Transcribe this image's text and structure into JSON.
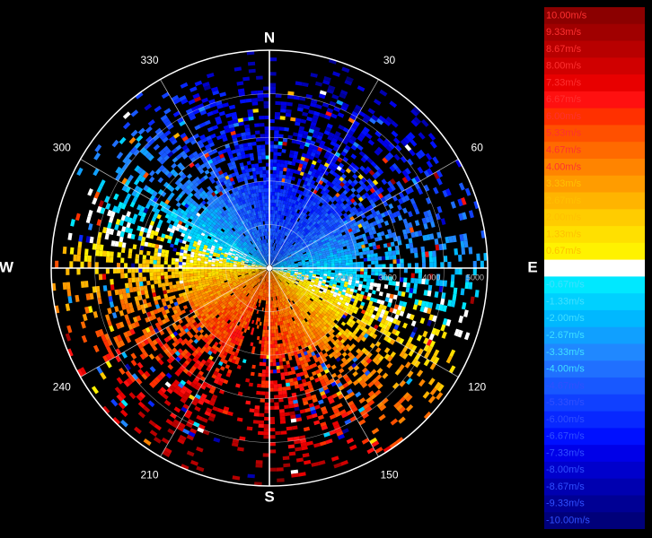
{
  "chart_data": {
    "type": "heatmap",
    "subtype": "polar-radial-velocity",
    "units": "m/s",
    "compass": {
      "north": "N",
      "east": "E",
      "south": "S",
      "west": "W"
    },
    "azimuth_labels": [
      "30",
      "60",
      "120",
      "150",
      "210",
      "240",
      "300",
      "330"
    ],
    "range_labels": [
      "1000",
      "2000",
      "3000",
      "4000",
      "5000"
    ],
    "range_max": 5000,
    "rings": [
      1000,
      2000,
      3000,
      4000,
      5000
    ],
    "pattern": {
      "max_velocity_direction_deg": 195,
      "receding_half": "south",
      "approaching_half": "north",
      "dense_range": 2000
    },
    "colorbar": {
      "labels": [
        "10.00m/s",
        "9.33m/s",
        "8.67m/s",
        "8.00m/s",
        "7.33m/s",
        "6.67m/s",
        "6.00m/s",
        "5.33m/s",
        "4.67m/s",
        "4.00m/s",
        "3.33m/s",
        "2.67m/s",
        "2.00m/s",
        "1.33m/s",
        "0.67m/s",
        "0.00m/s",
        "-0.67m/s",
        "-1.33m/s",
        "-2.00m/s",
        "-2.67m/s",
        "-3.33m/s",
        "-4.00m/s",
        "-4.67m/s",
        "-5.33m/s",
        "-6.00m/s",
        "-6.67m/s",
        "-7.33m/s",
        "-8.00m/s",
        "-8.67m/s",
        "-9.33m/s",
        "-10.00m/s"
      ],
      "colors": [
        "#8b0000",
        "#a00000",
        "#b80000",
        "#d00000",
        "#e80000",
        "#ff1010",
        "#ff3000",
        "#ff5000",
        "#ff6a00",
        "#ff8400",
        "#ff9c00",
        "#ffb400",
        "#ffcc00",
        "#ffe000",
        "#fff200",
        "#ffffff",
        "#00e8ff",
        "#00d0ff",
        "#00b8ff",
        "#10a0ff",
        "#2088ff",
        "#2070ff",
        "#1858ff",
        "#1040ff",
        "#0828ff",
        "#0010ff",
        "#0000e8",
        "#0000cc",
        "#0000b0",
        "#000094",
        "#00007a"
      ]
    }
  }
}
